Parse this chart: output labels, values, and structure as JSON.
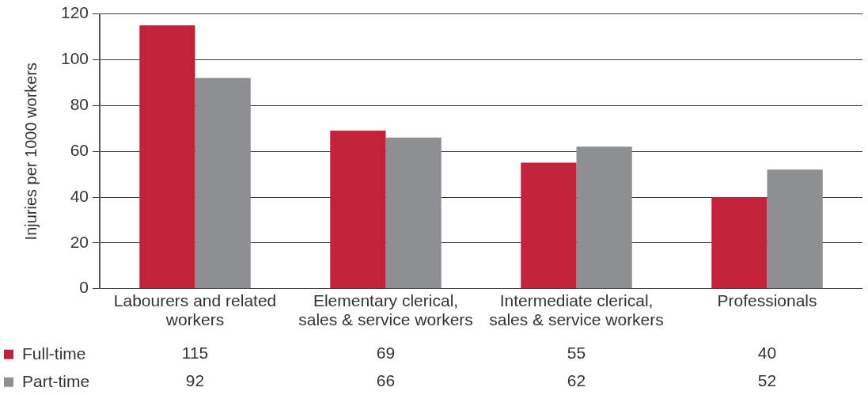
{
  "chart_data": {
    "type": "bar",
    "ylabel": "Injuries per 1000 workers",
    "categories": [
      "Labourers and related workers",
      "Elementary clerical, sales & service workers",
      "Intermediate clerical, sales & service workers",
      "Professionals"
    ],
    "series": [
      {
        "name": "Full-time",
        "color": "#c4213a",
        "values": [
          115,
          69,
          55,
          40
        ]
      },
      {
        "name": "Part-time",
        "color": "#8e8f92",
        "values": [
          92,
          66,
          62,
          52
        ]
      }
    ],
    "ylim": [
      0,
      120
    ],
    "yticks": [
      0,
      20,
      40,
      60,
      80,
      100,
      120
    ],
    "grid": "y",
    "legend": "bottom left",
    "data_labels": true
  }
}
